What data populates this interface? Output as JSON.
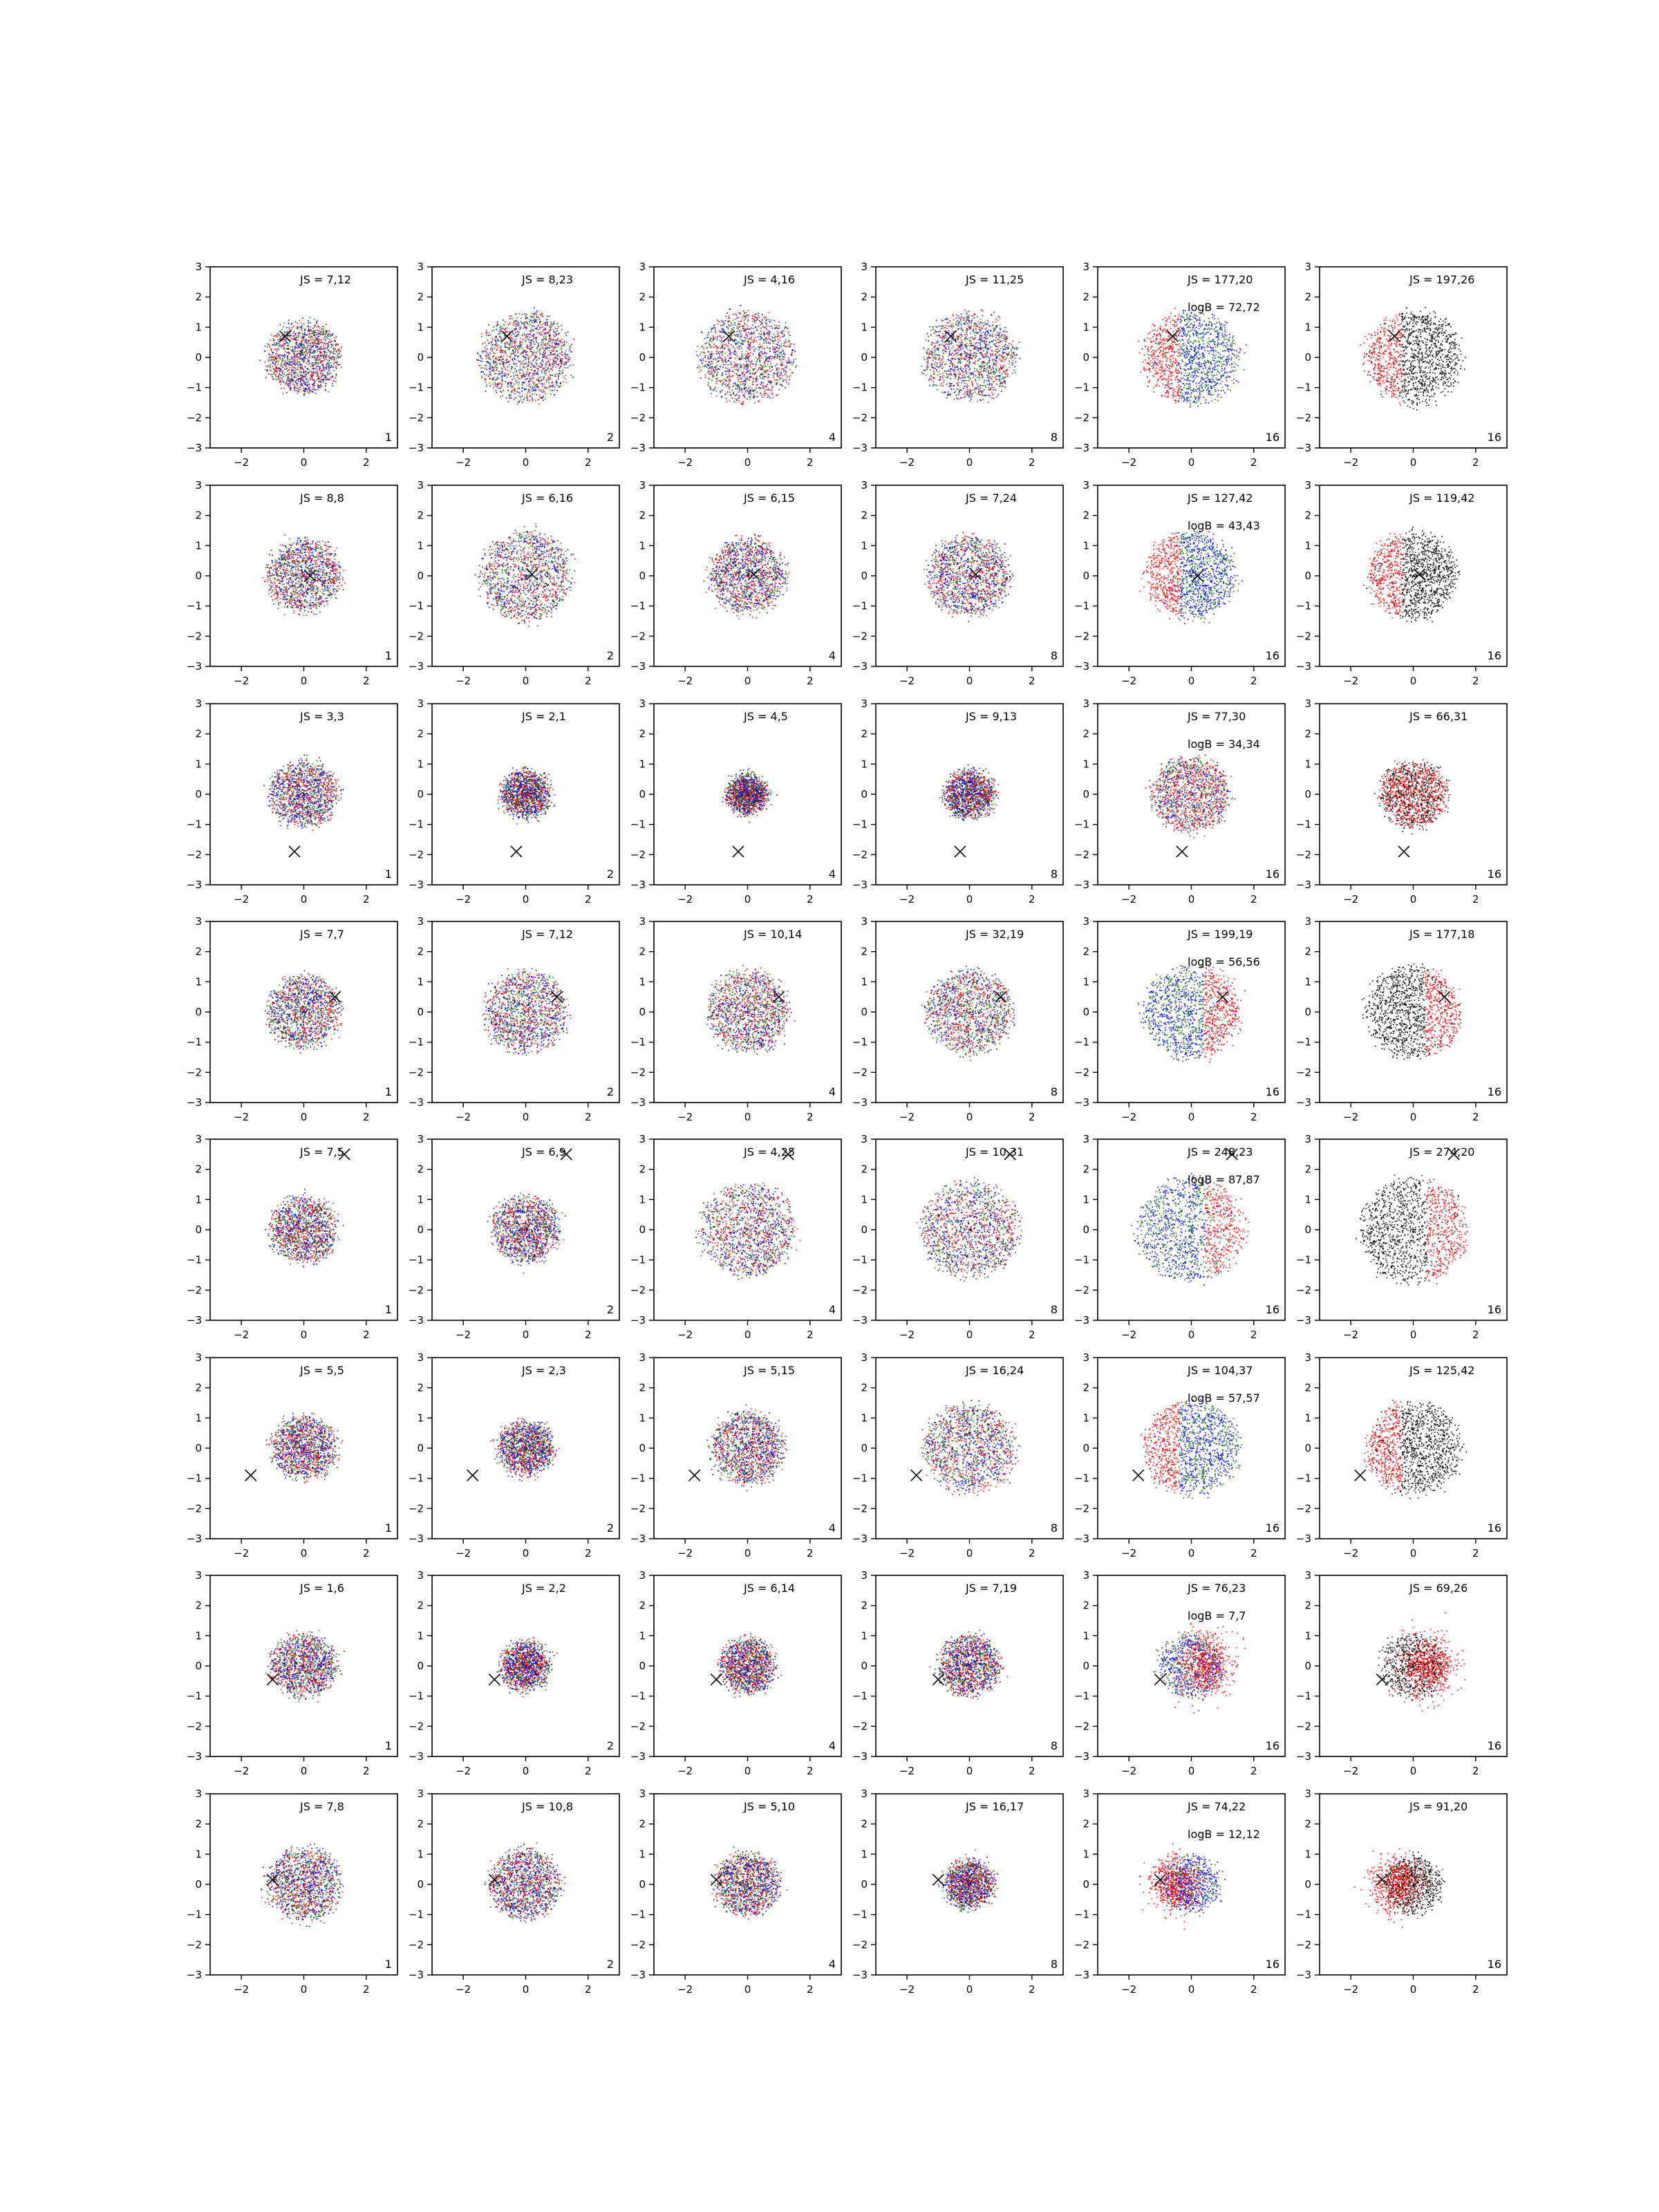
{
  "figure": {
    "grid_rows": 8,
    "grid_cols": 6,
    "axis_range": {
      "xlim": [
        -3,
        3
      ],
      "ylim": [
        -3,
        3
      ]
    },
    "xticks": [
      -2,
      0,
      2
    ],
    "yticks": [
      -3,
      -2,
      -1,
      0,
      1,
      2,
      3
    ],
    "colors": {
      "series_a": "#ff0000",
      "series_b": "#0000ff",
      "series_c": "#008000",
      "series_d": "#000000",
      "marker": "#000000"
    }
  },
  "chart_data": [
    {
      "type": "scatter",
      "row": 0,
      "col": 0,
      "js": "JS = 7,12",
      "corner": "1",
      "marker": [
        -0.6,
        0.7
      ],
      "spread": 1.15,
      "mode": "mix"
    },
    {
      "type": "scatter",
      "row": 0,
      "col": 1,
      "js": "JS = 8,23",
      "corner": "2",
      "marker": [
        -0.6,
        0.7
      ],
      "spread": 1.45,
      "mode": "mix"
    },
    {
      "type": "scatter",
      "row": 0,
      "col": 2,
      "js": "JS = 4,16",
      "corner": "4",
      "marker": [
        -0.6,
        0.7
      ],
      "spread": 1.5,
      "mode": "mix"
    },
    {
      "type": "scatter",
      "row": 0,
      "col": 3,
      "js": "JS = 11,25",
      "corner": "8",
      "marker": [
        -0.6,
        0.7
      ],
      "spread": 1.45,
      "mode": "mix"
    },
    {
      "type": "scatter",
      "row": 0,
      "col": 4,
      "js": "JS = 177,20",
      "logb": "logB = 72,72",
      "corner": "16",
      "marker": [
        -0.6,
        0.7
      ],
      "spread": 1.5,
      "mode": "crescent",
      "dir": [
        -1,
        0
      ]
    },
    {
      "type": "scatter",
      "row": 0,
      "col": 5,
      "js": "JS = 197,26",
      "corner": "16",
      "marker": [
        -0.6,
        0.7
      ],
      "spread": 1.5,
      "mode": "crescentBlack",
      "dir": [
        -1,
        0
      ]
    },
    {
      "type": "scatter",
      "row": 1,
      "col": 0,
      "js": "JS = 8,8",
      "corner": "1",
      "marker": [
        0.2,
        0.0
      ],
      "spread": 1.15,
      "mode": "mix"
    },
    {
      "type": "scatter",
      "row": 1,
      "col": 1,
      "js": "JS = 6,16",
      "corner": "2",
      "marker": [
        0.2,
        0.05
      ],
      "spread": 1.45,
      "mode": "mix"
    },
    {
      "type": "scatter",
      "row": 1,
      "col": 2,
      "js": "JS = 6,15",
      "corner": "4",
      "marker": [
        0.2,
        0.05
      ],
      "spread": 1.2,
      "mode": "mix"
    },
    {
      "type": "scatter",
      "row": 1,
      "col": 3,
      "js": "JS = 7,24",
      "corner": "8",
      "marker": [
        0.2,
        0.05
      ],
      "spread": 1.3,
      "mode": "mix"
    },
    {
      "type": "scatter",
      "row": 1,
      "col": 4,
      "js": "JS = 127,42",
      "logb": "logB = 43,43",
      "corner": "16",
      "marker": [
        0.2,
        0.0
      ],
      "spread": 1.4,
      "mode": "crescent",
      "dir": [
        -1,
        0
      ]
    },
    {
      "type": "scatter",
      "row": 1,
      "col": 5,
      "js": "JS = 119,42",
      "corner": "16",
      "marker": [
        0.2,
        0.05
      ],
      "spread": 1.4,
      "mode": "crescentBlack",
      "dir": [
        -1,
        0
      ]
    },
    {
      "type": "scatter",
      "row": 2,
      "col": 0,
      "js": "JS = 3,3",
      "corner": "1",
      "marker": [
        -0.3,
        -1.9
      ],
      "spread": 1.05,
      "mode": "mix"
    },
    {
      "type": "scatter",
      "row": 2,
      "col": 1,
      "js": "JS = 2,1",
      "corner": "2",
      "marker": [
        -0.3,
        -1.9
      ],
      "spread": 0.75,
      "mode": "mix"
    },
    {
      "type": "scatter",
      "row": 2,
      "col": 2,
      "js": "JS = 4,5",
      "corner": "4",
      "marker": [
        -0.3,
        -1.9
      ],
      "spread": 0.6,
      "mode": "mix"
    },
    {
      "type": "scatter",
      "row": 2,
      "col": 3,
      "js": "JS = 9,13",
      "corner": "8",
      "marker": [
        -0.3,
        -1.9
      ],
      "spread": 0.75,
      "mode": "mix"
    },
    {
      "type": "scatter",
      "row": 2,
      "col": 4,
      "js": "JS = 77,30",
      "logb": "logB = 34,34",
      "corner": "16",
      "marker": [
        -0.3,
        -1.9
      ],
      "spread": 1.2,
      "mode": "mixRed"
    },
    {
      "type": "scatter",
      "row": 2,
      "col": 5,
      "js": "JS = 66,31",
      "corner": "16",
      "marker": [
        -0.3,
        -1.9
      ],
      "spread": 1.05,
      "mode": "blobBlack"
    },
    {
      "type": "scatter",
      "row": 3,
      "col": 0,
      "js": "JS = 7,7",
      "corner": "1",
      "marker": [
        1.0,
        0.5
      ],
      "spread": 1.15,
      "mode": "mix"
    },
    {
      "type": "scatter",
      "row": 3,
      "col": 1,
      "js": "JS = 7,12",
      "corner": "2",
      "marker": [
        1.0,
        0.5
      ],
      "spread": 1.3,
      "mode": "mix"
    },
    {
      "type": "scatter",
      "row": 3,
      "col": 2,
      "js": "JS = 10,14",
      "corner": "4",
      "marker": [
        1.0,
        0.5
      ],
      "spread": 1.3,
      "mode": "mix"
    },
    {
      "type": "scatter",
      "row": 3,
      "col": 3,
      "js": "JS = 32,19",
      "corner": "8",
      "marker": [
        1.0,
        0.5
      ],
      "spread": 1.35,
      "mode": "mix"
    },
    {
      "type": "scatter",
      "row": 3,
      "col": 4,
      "js": "JS = 199,19",
      "logb": "logB = 56,56",
      "corner": "16",
      "marker": [
        1.0,
        0.5
      ],
      "spread": 1.5,
      "mode": "crescent",
      "dir": [
        1,
        0
      ]
    },
    {
      "type": "scatter",
      "row": 3,
      "col": 5,
      "js": "JS = 177,18",
      "corner": "16",
      "marker": [
        1.0,
        0.5
      ],
      "spread": 1.5,
      "mode": "crescentBlack",
      "dir": [
        1,
        0
      ]
    },
    {
      "type": "scatter",
      "row": 4,
      "col": 0,
      "js": "JS = 7,5",
      "corner": "1",
      "marker": [
        1.3,
        2.5
      ],
      "spread": 1.05,
      "mode": "mix"
    },
    {
      "type": "scatter",
      "row": 4,
      "col": 1,
      "js": "JS = 6,9",
      "corner": "2",
      "marker": [
        1.3,
        2.5
      ],
      "spread": 1.05,
      "mode": "mix"
    },
    {
      "type": "scatter",
      "row": 4,
      "col": 2,
      "js": "JS = 4,25",
      "corner": "4",
      "marker": [
        1.3,
        2.5
      ],
      "spread": 1.5,
      "mode": "mix"
    },
    {
      "type": "scatter",
      "row": 4,
      "col": 3,
      "js": "JS = 10,31",
      "corner": "8",
      "marker": [
        1.3,
        2.5
      ],
      "spread": 1.55,
      "mode": "mix"
    },
    {
      "type": "scatter",
      "row": 4,
      "col": 4,
      "js": "JS = 248,23",
      "logb": "logB = 87,87",
      "corner": "16",
      "marker": [
        1.3,
        2.5
      ],
      "spread": 1.7,
      "mode": "crescent",
      "dir": [
        1,
        0
      ]
    },
    {
      "type": "scatter",
      "row": 4,
      "col": 5,
      "js": "JS = 274,20",
      "corner": "16",
      "marker": [
        1.3,
        2.5
      ],
      "spread": 1.7,
      "mode": "crescentBlack",
      "dir": [
        1,
        0
      ]
    },
    {
      "type": "scatter",
      "row": 5,
      "col": 0,
      "js": "JS = 5,5",
      "corner": "1",
      "marker": [
        -1.7,
        -0.9
      ],
      "spread": 1.0,
      "mode": "mix"
    },
    {
      "type": "scatter",
      "row": 5,
      "col": 1,
      "js": "JS = 2,3",
      "corner": "2",
      "marker": [
        -1.7,
        -0.9
      ],
      "spread": 0.85,
      "mode": "mix"
    },
    {
      "type": "scatter",
      "row": 5,
      "col": 2,
      "js": "JS = 5,15",
      "corner": "4",
      "marker": [
        -1.7,
        -0.9
      ],
      "spread": 1.15,
      "mode": "mix"
    },
    {
      "type": "scatter",
      "row": 5,
      "col": 3,
      "js": "JS = 16,24",
      "corner": "8",
      "marker": [
        -1.7,
        -0.9
      ],
      "spread": 1.45,
      "mode": "mix"
    },
    {
      "type": "scatter",
      "row": 5,
      "col": 4,
      "js": "JS = 104,37",
      "logb": "logB = 57,57",
      "corner": "16",
      "marker": [
        -1.7,
        -0.9
      ],
      "spread": 1.5,
      "mode": "crescent",
      "dir": [
        -1,
        0
      ]
    },
    {
      "type": "scatter",
      "row": 5,
      "col": 5,
      "js": "JS = 125,42",
      "corner": "16",
      "marker": [
        -1.7,
        -0.9
      ],
      "spread": 1.5,
      "mode": "crescentBlack",
      "dir": [
        -1,
        0
      ]
    },
    {
      "type": "scatter",
      "row": 6,
      "col": 0,
      "js": "JS = 1,6",
      "corner": "1",
      "marker": [
        -1.0,
        -0.45
      ],
      "spread": 1.0,
      "mode": "mix"
    },
    {
      "type": "scatter",
      "row": 6,
      "col": 1,
      "js": "JS = 2,2",
      "corner": "2",
      "marker": [
        -1.0,
        -0.45
      ],
      "spread": 0.75,
      "mode": "mix"
    },
    {
      "type": "scatter",
      "row": 6,
      "col": 2,
      "js": "JS = 6,14",
      "corner": "4",
      "marker": [
        -1.0,
        -0.45
      ],
      "spread": 0.85,
      "mode": "mix"
    },
    {
      "type": "scatter",
      "row": 6,
      "col": 3,
      "js": "JS = 7,19",
      "corner": "8",
      "marker": [
        -1.0,
        -0.45
      ],
      "spread": 0.95,
      "mode": "mix"
    },
    {
      "type": "scatter",
      "row": 6,
      "col": 4,
      "js": "JS = 76,23",
      "logb": "logB = 7,7",
      "corner": "16",
      "marker": [
        -1.0,
        -0.45
      ],
      "spread": 1.0,
      "mode": "blobRed",
      "offset": [
        0.4,
        0
      ]
    },
    {
      "type": "scatter",
      "row": 6,
      "col": 5,
      "js": "JS = 69,26",
      "corner": "16",
      "marker": [
        -1.0,
        -0.45
      ],
      "spread": 1.0,
      "mode": "blobRedBlack",
      "offset": [
        0.4,
        0
      ]
    },
    {
      "type": "scatter",
      "row": 7,
      "col": 0,
      "js": "JS = 7,8",
      "corner": "1",
      "marker": [
        -1.0,
        0.15
      ],
      "spread": 1.15,
      "mode": "mix"
    },
    {
      "type": "scatter",
      "row": 7,
      "col": 1,
      "js": "JS = 10,8",
      "corner": "2",
      "marker": [
        -1.0,
        0.15
      ],
      "spread": 1.1,
      "mode": "mix"
    },
    {
      "type": "scatter",
      "row": 7,
      "col": 2,
      "js": "JS = 5,10",
      "corner": "4",
      "marker": [
        -1.0,
        0.15
      ],
      "spread": 1.0,
      "mode": "mix"
    },
    {
      "type": "scatter",
      "row": 7,
      "col": 3,
      "js": "JS = 16,17",
      "corner": "8",
      "marker": [
        -1.0,
        0.15
      ],
      "spread": 0.75,
      "mode": "mix"
    },
    {
      "type": "scatter",
      "row": 7,
      "col": 4,
      "js": "JS = 74,22",
      "logb": "logB = 12,12",
      "corner": "16",
      "marker": [
        -1.0,
        0.15
      ],
      "spread": 0.9,
      "mode": "blobRed",
      "offset": [
        -0.5,
        0
      ]
    },
    {
      "type": "scatter",
      "row": 7,
      "col": 5,
      "js": "JS = 91,20",
      "corner": "16",
      "marker": [
        -1.0,
        0.15
      ],
      "spread": 0.9,
      "mode": "blobRedBlack",
      "offset": [
        -0.5,
        0
      ]
    }
  ]
}
